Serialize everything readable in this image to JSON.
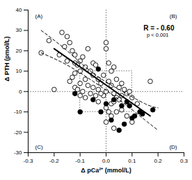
{
  "chart_data": {
    "type": "scatter",
    "x_label": "Δ pCa²⁺ (mmol/L)",
    "y_label": "Δ PTH (pmol/L)",
    "xlim": [
      -0.3,
      0.3
    ],
    "xticks": [
      -0.3,
      -0.2,
      -0.1,
      {
        "value": 0,
        "label": "0.0"
      },
      0.1,
      0.2,
      0.3
    ],
    "ylim": [
      -30,
      40
    ],
    "yticks": [
      -30,
      -20,
      -10,
      0,
      10,
      20,
      30,
      40
    ],
    "grid": false,
    "quadrant_labels": [
      "(A)",
      "(B)",
      "(C)",
      "(D)"
    ],
    "annotations": [
      "R = - 0.60",
      "p < 0.001"
    ],
    "reference_lines": {
      "x": [
        0
      ],
      "y": [
        0
      ]
    },
    "box": {
      "x": [
        -0.1,
        0.1
      ],
      "y": [
        -10,
        10
      ]
    },
    "series": [
      {
        "type": "scatter",
        "marker": "open",
        "color": "#000000",
        "x": [
          -0.25,
          -0.22,
          -0.17,
          -0.15,
          -0.16,
          -0.14,
          -0.13,
          -0.12,
          -0.15,
          -0.18,
          -0.12,
          -0.11,
          -0.1,
          -0.09,
          -0.08,
          -0.1,
          -0.12,
          -0.13,
          -0.07,
          -0.05,
          -0.06,
          -0.05,
          -0.04,
          -0.03,
          -0.08,
          -0.1,
          -0.12,
          -0.2,
          -0.07,
          -0.05,
          -0.03,
          -0.02,
          -0.01,
          0.0,
          0.0,
          0.01,
          0.02,
          0.03,
          0.01,
          0.02,
          0.0,
          0.03,
          0.04,
          0.05,
          0.06,
          0.07,
          0.04,
          0.05,
          0.06,
          0.08,
          0.09,
          0.1,
          -0.01,
          -0.02,
          -0.04,
          -0.06,
          -0.08,
          -0.1,
          -0.09,
          -0.11,
          0.0,
          0.01,
          0.02,
          0.0,
          0.03,
          0.02,
          0.06,
          0.04,
          0.08,
          0.1,
          0.17,
          0.12,
          -0.14,
          -0.03,
          0.03
        ],
        "y": [
          19,
          25,
          29,
          27,
          22,
          24,
          20,
          18,
          15,
          18,
          14,
          13,
          15,
          17,
          12,
          10,
          9,
          7,
          21,
          14,
          10,
          8,
          13,
          6,
          6,
          4,
          2,
          1,
          3,
          2,
          1,
          4,
          8,
          24,
          21,
          14,
          10,
          12,
          5,
          3,
          0,
          -1,
          6,
          2,
          4,
          1,
          -3,
          -4,
          -2,
          -1,
          0,
          -3,
          -2,
          -1,
          -2,
          -1,
          -3,
          -2,
          0,
          1,
          -8,
          -10,
          -12,
          -15,
          -18,
          -6,
          -9,
          -10,
          -12,
          -15,
          5,
          -6,
          5,
          -5,
          -5
        ]
      },
      {
        "type": "scatter",
        "marker": "filled",
        "color": "#000000",
        "x": [
          -0.12,
          -0.1,
          -0.03,
          -0.05,
          -0.02,
          0.0,
          0.02,
          0.03,
          0.05,
          0.06,
          0.08,
          0.09,
          0.1,
          0.11,
          0.13,
          0.14,
          0.18,
          0.07
        ],
        "y": [
          -1,
          -10,
          11,
          -4,
          -10,
          -6,
          -14,
          -4,
          -19,
          -7,
          -5,
          -7,
          -13,
          -12,
          -10,
          -11,
          -9,
          -16
        ]
      },
      {
        "type": "line",
        "line_style": "solid",
        "color": "#000000",
        "x": [
          -0.2,
          0.17
        ],
        "y": [
          21,
          -12
        ]
      },
      {
        "type": "line",
        "line_style": "dashed",
        "color": "#000000",
        "x": [
          -0.25,
          -0.15,
          -0.05,
          0.05,
          0.15,
          0.2
        ],
        "y": [
          30,
          20,
          9,
          1,
          -6,
          -8
        ]
      },
      {
        "type": "line",
        "line_style": "dashed",
        "color": "#000000",
        "x": [
          -0.25,
          -0.15,
          -0.05,
          0.05,
          0.15,
          0.2
        ],
        "y": [
          19,
          13,
          5,
          -4,
          -14,
          -19
        ]
      }
    ]
  }
}
